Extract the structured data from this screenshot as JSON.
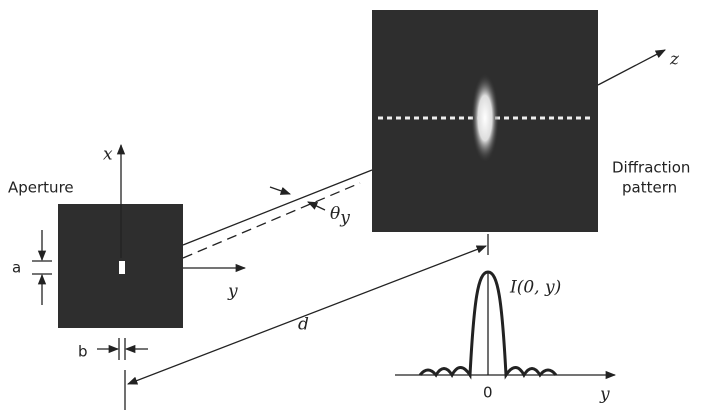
{
  "aperture": {
    "label": "Aperture",
    "x_axis": "x",
    "y_axis": "y",
    "height_label": "a",
    "width_label": "b"
  },
  "propagation": {
    "angle": "θ",
    "angle_sub": "y",
    "distance": "d",
    "z_axis": "z"
  },
  "pattern": {
    "label_lines": [
      "Diffraction",
      "pattern"
    ],
    "intensity_label": "I(0, y)",
    "origin": "0",
    "axis": "y"
  }
}
